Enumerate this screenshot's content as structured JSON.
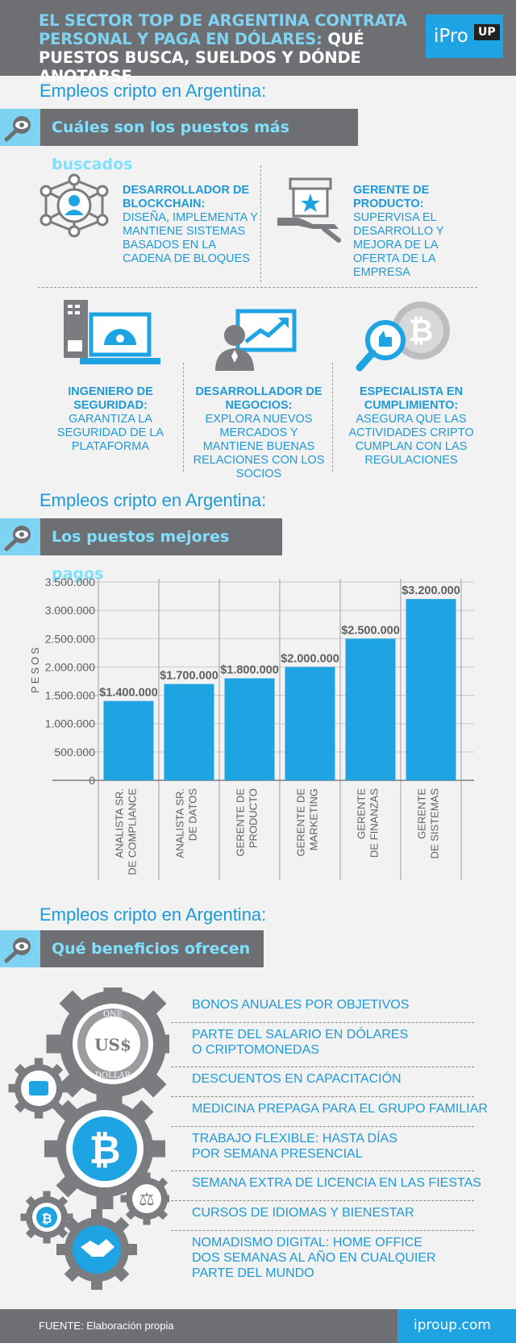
{
  "header": {
    "title_highlight": "EL SECTOR TOP DE ARGENTINA CONTRATA PERSONAL Y PAGA EN DÓLARES:",
    "title_rest": "QUÉ PUESTOS BUSCA, SUELDOS Y DÓNDE ANOTARSE",
    "logo_text": "iPro",
    "logo_badge": "UP"
  },
  "section1": {
    "subhead": "Empleos cripto en Argentina:",
    "banner": "Cuáles son los puestos más buscados",
    "jobs": [
      {
        "title": "DESARROLLADOR DE BLOCKCHAIN:",
        "desc": "DISEÑA, IMPLEMENTA Y MANTIENE SISTEMAS BASADOS EN LA CADENA DE BLOQUES"
      },
      {
        "title": "GERENTE DE PRODUCTO:",
        "desc": "SUPERVISA EL DESARROLLO Y MEJORA DE LA OFERTA DE LA EMPRESA"
      },
      {
        "title": "INGENIERO DE SEGURIDAD:",
        "desc": "GARANTIZA LA SEGURIDAD DE LA PLATAFORMA"
      },
      {
        "title": "DESARROLLADOR DE NEGOCIOS:",
        "desc": "EXPLORA NUEVOS MERCADOS Y MANTIENE BUENAS RELACIONES CON LOS SOCIOS"
      },
      {
        "title": "ESPECIALISTA EN CUMPLIMIENTO:",
        "desc": "ASEGURA QUE LAS ACTIVIDADES CRIPTO CUMPLAN CON LAS REGULACIONES"
      }
    ]
  },
  "section2": {
    "subhead": "Empleos cripto en Argentina:",
    "banner": "Los puestos mejores pagos"
  },
  "chart_data": {
    "type": "bar",
    "categories": [
      "ANALISTA SR. DE COMPLIANCE",
      "ANALISTA SR. DE DATOS",
      "GERENTE DE PRODUCTO",
      "GERENTE DE MARKETING",
      "GERENTE DE FINANZAS",
      "GERENTE DE SISTEMAS"
    ],
    "category_lines": [
      [
        "ANALISTA SR.",
        "DE COMPLIANCE"
      ],
      [
        "ANALISTA SR.",
        "DE DATOS"
      ],
      [
        "GERENTE DE",
        "PRODUCTO"
      ],
      [
        "GERENTE DE",
        "MARKETING"
      ],
      [
        "GERENTE",
        "DE FINANZAS"
      ],
      [
        "GERENTE",
        "DE SISTEMAS"
      ]
    ],
    "values": [
      1400000,
      1700000,
      1800000,
      2000000,
      2500000,
      3200000
    ],
    "data_labels": [
      "$1.400.000",
      "$1.700.000",
      "$1.800.000",
      "$2.000.000",
      "$2.500.000",
      "$3.200.000"
    ],
    "yticks": [
      0,
      500000,
      1000000,
      1500000,
      2000000,
      2500000,
      3000000,
      3500000
    ],
    "ytick_labels": [
      "0",
      "500.000",
      "1.000.000",
      "1.500.000",
      "2.000.000",
      "2.500.000",
      "3.000.000",
      "3.500.000"
    ],
    "ylabel": "PESOS",
    "xlabel": "",
    "ylim": [
      0,
      3500000
    ],
    "grid": true,
    "bar_color": "#1ea3e3"
  },
  "section3": {
    "subhead": "Empleos cripto en Argentina:",
    "banner": "Qué beneficios ofrecen",
    "benefits": [
      [
        "BONOS ANUALES POR OBJETIVOS"
      ],
      [
        "PARTE DEL SALARIO EN DÓLARES",
        "O CRIPTOMONEDAS"
      ],
      [
        "DESCUENTOS EN CAPACITACIÓN"
      ],
      [
        "MEDICINA PREPAGA PARA EL GRUPO FAMILIAR"
      ],
      [
        "TRABAJO FLEXIBLE: HASTA DÍAS",
        "POR SEMANA PRESENCIAL"
      ],
      [
        "SEMANA EXTRA DE LICENCIA EN LAS FIESTAS"
      ],
      [
        "CURSOS DE IDIOMAS Y BIENESTAR"
      ],
      [
        "NOMADISMO DIGITAL: HOME OFFICE",
        "DOS SEMANAS AL AÑO EN CUALQUIER",
        "PARTE DEL MUNDO"
      ]
    ],
    "gear_labels": {
      "dollar_top": "ONE",
      "dollar_bottom": "DOLLAR",
      "dollar_center": "US$"
    }
  },
  "footer": {
    "source": "FUENTE: Elaboración propia",
    "url": "iproup.com"
  },
  "colors": {
    "accent": "#1ea3e3",
    "light_accent": "#7fd3f2",
    "gray": "#6e6f73",
    "background": "#f2f2f2"
  }
}
